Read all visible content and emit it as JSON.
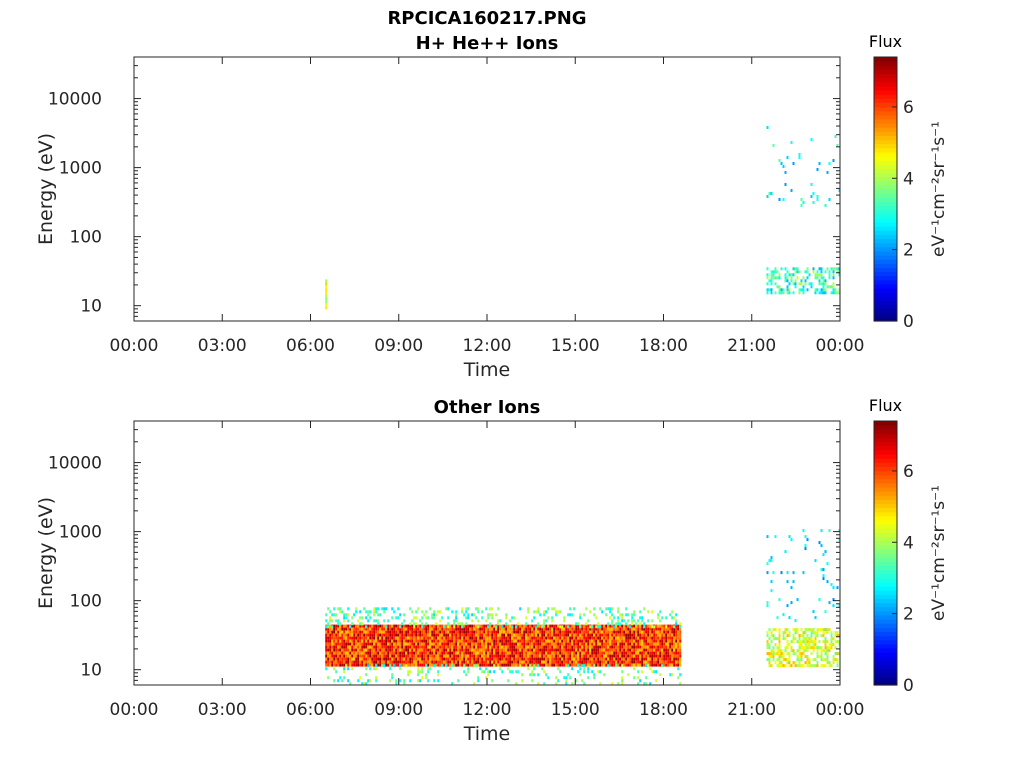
{
  "figure_title": "RPCICA160217.PNG",
  "chart_data": [
    {
      "type": "heatmap",
      "title": "H+ He++ Ions",
      "xlabel": "Time",
      "ylabel": "Energy (eV)",
      "x_ticks": [
        "00:00",
        "03:00",
        "06:00",
        "09:00",
        "12:00",
        "15:00",
        "18:00",
        "21:00",
        "00:00"
      ],
      "x_range_hours": [
        0,
        24
      ],
      "y_ticks": [
        "10",
        "100",
        "1000",
        "10000"
      ],
      "y_scale": "log",
      "y_range": [
        6,
        40000
      ],
      "colorbar": {
        "title": "Flux",
        "units": "eV⁻¹cm⁻²sr⁻¹s⁻¹",
        "range": [
          0,
          7.4
        ],
        "ticks": [
          "0",
          "2",
          "4",
          "6"
        ],
        "colormap": "jet"
      },
      "regions": [
        {
          "t_start": 6.5,
          "t_end": 6.56,
          "e_min": 9,
          "e_max": 24,
          "flux_min": 3.5,
          "flux_max": 5,
          "density": 1.0
        },
        {
          "t_start": 21.5,
          "t_end": 24.0,
          "e_min": 16,
          "e_max": 36,
          "flux_min": 2.2,
          "flux_max": 4.2,
          "density": 0.45
        },
        {
          "t_start": 21.5,
          "t_end": 24.0,
          "e_min": 260,
          "e_max": 4000,
          "flux_min": 2.0,
          "flux_max": 3.5,
          "density": 0.03
        }
      ]
    },
    {
      "type": "heatmap",
      "title": "Other Ions",
      "xlabel": "Time",
      "ylabel": "Energy (eV)",
      "x_ticks": [
        "00:00",
        "03:00",
        "06:00",
        "09:00",
        "12:00",
        "15:00",
        "18:00",
        "21:00",
        "00:00"
      ],
      "x_range_hours": [
        0,
        24
      ],
      "y_ticks": [
        "10",
        "100",
        "1000",
        "10000"
      ],
      "y_scale": "log",
      "y_range": [
        6,
        40000
      ],
      "colorbar": {
        "title": "Flux",
        "units": "eV⁻¹cm⁻²sr⁻¹s⁻¹",
        "range": [
          0,
          7.4
        ],
        "ticks": [
          "0",
          "2",
          "4",
          "6"
        ],
        "colormap": "jet"
      },
      "regions": [
        {
          "t_start": 6.5,
          "t_end": 18.6,
          "e_min": 12,
          "e_max": 45,
          "flux_min": 5.0,
          "flux_max": 7.3,
          "density": 1.0
        },
        {
          "t_start": 6.5,
          "t_end": 18.6,
          "e_min": 40,
          "e_max": 80,
          "flux_min": 2.5,
          "flux_max": 4.5,
          "density": 0.25
        },
        {
          "t_start": 6.5,
          "t_end": 18.6,
          "e_min": 6,
          "e_max": 12,
          "flux_min": 2.5,
          "flux_max": 4.5,
          "density": 0.15
        },
        {
          "t_start": 21.5,
          "t_end": 24.0,
          "e_min": 12,
          "e_max": 40,
          "flux_min": 3.5,
          "flux_max": 5.2,
          "density": 0.55
        },
        {
          "t_start": 21.5,
          "t_end": 24.0,
          "e_min": 50,
          "e_max": 1200,
          "flux_min": 1.8,
          "flux_max": 3.2,
          "density": 0.04
        }
      ]
    }
  ]
}
